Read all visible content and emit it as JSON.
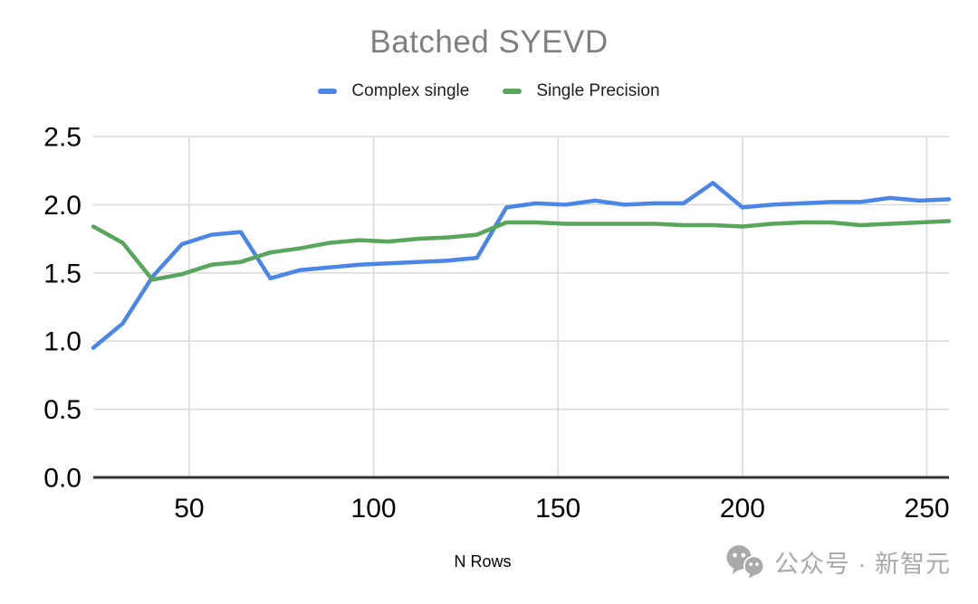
{
  "title": {
    "text": "Batched SYEVD",
    "color": "#7f7f7f"
  },
  "legend": {
    "items": [
      {
        "label": "Complex single",
        "color": "#4a86e8"
      },
      {
        "label": "Single Precision",
        "color": "#58a55c"
      }
    ]
  },
  "axes": {
    "x_label": "N Rows",
    "x_ticks": [
      "50",
      "100",
      "150",
      "200",
      "250"
    ],
    "y_ticks": [
      "0.0",
      "0.5",
      "1.0",
      "1.5",
      "2.0",
      "2.5"
    ],
    "grid_color": "#d9d9d9",
    "axis_line_color": "#333333",
    "tick_text_color": "#000000"
  },
  "watermark": {
    "icon": "wechat-icon",
    "text": "公众号 · 新智元",
    "color": "#a9a9a9"
  },
  "chart_data": {
    "type": "line",
    "title": "Batched SYEVD",
    "xlabel": "N Rows",
    "ylabel": "",
    "xlim": [
      24,
      256
    ],
    "ylim": [
      0.0,
      2.5
    ],
    "xticks": [
      50,
      100,
      150,
      200,
      250
    ],
    "yticks": [
      0.0,
      0.5,
      1.0,
      1.5,
      2.0,
      2.5
    ],
    "grid": true,
    "legend_position": "top",
    "x": [
      24,
      32,
      40,
      48,
      56,
      64,
      72,
      80,
      88,
      96,
      104,
      112,
      120,
      128,
      136,
      144,
      152,
      160,
      168,
      176,
      184,
      192,
      200,
      208,
      216,
      224,
      232,
      240,
      248,
      256
    ],
    "series": [
      {
        "name": "Complex single",
        "color": "#4a86e8",
        "values": [
          0.95,
          1.13,
          1.47,
          1.71,
          1.78,
          1.8,
          1.46,
          1.52,
          1.54,
          1.56,
          1.57,
          1.58,
          1.59,
          1.61,
          1.98,
          2.01,
          2.0,
          2.03,
          2.0,
          2.01,
          2.01,
          2.16,
          1.98,
          2.0,
          2.01,
          2.02,
          2.02,
          2.05,
          2.03,
          2.04
        ]
      },
      {
        "name": "Single Precision",
        "color": "#58a55c",
        "values": [
          1.84,
          1.72,
          1.45,
          1.49,
          1.56,
          1.58,
          1.65,
          1.68,
          1.72,
          1.74,
          1.73,
          1.75,
          1.76,
          1.78,
          1.87,
          1.87,
          1.86,
          1.86,
          1.86,
          1.86,
          1.85,
          1.85,
          1.84,
          1.86,
          1.87,
          1.87,
          1.85,
          1.86,
          1.87,
          1.88
        ]
      }
    ]
  }
}
